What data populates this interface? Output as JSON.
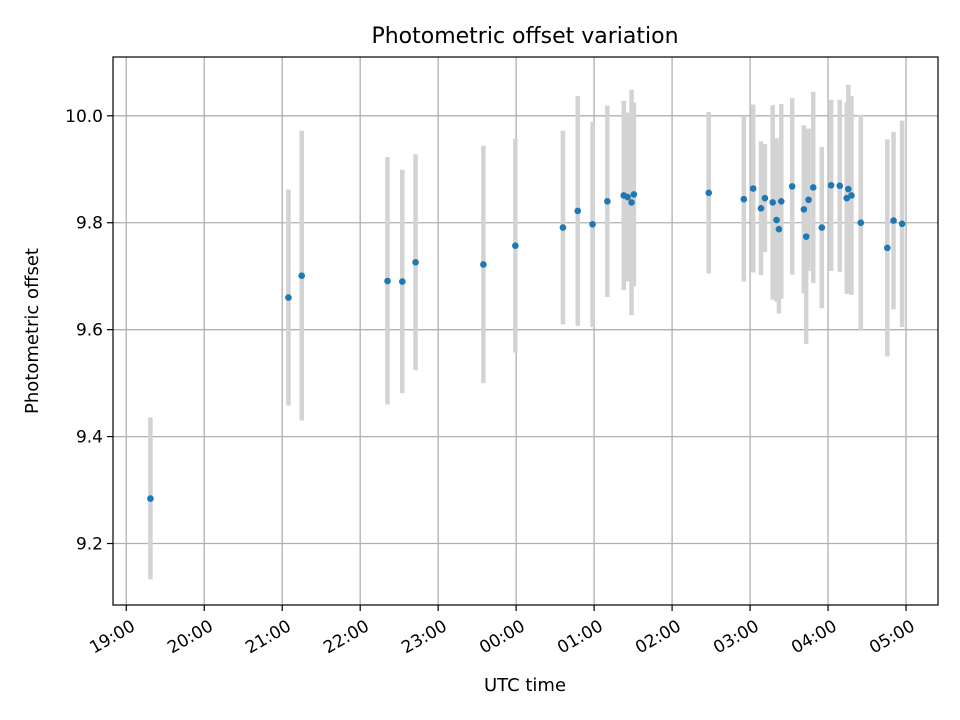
{
  "chart_data": {
    "type": "scatter",
    "title": "Photometric offset variation",
    "xlabel": "UTC time",
    "ylabel": "Photometric offset",
    "grid": true,
    "x_unit": "hours since 19:00 UTC",
    "xlim": [
      -0.17,
      10.41
    ],
    "ylim": [
      9.085,
      10.11
    ],
    "x_ticks": [
      {
        "value": 0,
        "label": "19:00"
      },
      {
        "value": 1,
        "label": "20:00"
      },
      {
        "value": 2,
        "label": "21:00"
      },
      {
        "value": 3,
        "label": "22:00"
      },
      {
        "value": 4,
        "label": "23:00"
      },
      {
        "value": 5,
        "label": "00:00"
      },
      {
        "value": 6,
        "label": "01:00"
      },
      {
        "value": 7,
        "label": "02:00"
      },
      {
        "value": 8,
        "label": "03:00"
      },
      {
        "value": 9,
        "label": "04:00"
      },
      {
        "value": 10,
        "label": "05:00"
      }
    ],
    "y_ticks": [
      {
        "value": 9.2,
        "label": "9.2"
      },
      {
        "value": 9.4,
        "label": "9.4"
      },
      {
        "value": 9.6,
        "label": "9.6"
      },
      {
        "value": 9.8,
        "label": "9.8"
      },
      {
        "value": 10.0,
        "label": "10.0"
      }
    ],
    "colors": {
      "point": "#1f77b4",
      "errorbar": "#d3d3d3",
      "grid": "#b0b0b0",
      "axis": "#000000"
    },
    "series": [
      {
        "name": "Photometric offset",
        "points": [
          {
            "x": 0.31,
            "y": 9.284,
            "lo": 9.133,
            "hi": 9.436
          },
          {
            "x": 2.08,
            "y": 9.66,
            "lo": 9.458,
            "hi": 9.862
          },
          {
            "x": 2.25,
            "y": 9.701,
            "lo": 9.43,
            "hi": 9.972
          },
          {
            "x": 3.35,
            "y": 9.691,
            "lo": 9.46,
            "hi": 9.923
          },
          {
            "x": 3.54,
            "y": 9.69,
            "lo": 9.481,
            "hi": 9.899
          },
          {
            "x": 3.71,
            "y": 9.726,
            "lo": 9.524,
            "hi": 9.928
          },
          {
            "x": 4.58,
            "y": 9.722,
            "lo": 9.5,
            "hi": 9.944
          },
          {
            "x": 4.99,
            "y": 9.757,
            "lo": 9.557,
            "hi": 9.957
          },
          {
            "x": 5.6,
            "y": 9.791,
            "lo": 9.61,
            "hi": 9.972
          },
          {
            "x": 5.79,
            "y": 9.822,
            "lo": 9.607,
            "hi": 10.037
          },
          {
            "x": 5.98,
            "y": 9.797,
            "lo": 9.605,
            "hi": 9.989
          },
          {
            "x": 6.17,
            "y": 9.84,
            "lo": 9.661,
            "hi": 10.019
          },
          {
            "x": 6.38,
            "y": 9.851,
            "lo": 9.674,
            "hi": 10.028
          },
          {
            "x": 6.43,
            "y": 9.848,
            "lo": 9.69,
            "hi": 10.006
          },
          {
            "x": 6.48,
            "y": 9.838,
            "lo": 9.627,
            "hi": 10.049
          },
          {
            "x": 6.51,
            "y": 9.853,
            "lo": 9.681,
            "hi": 10.025
          },
          {
            "x": 7.47,
            "y": 9.856,
            "lo": 9.705,
            "hi": 10.007
          },
          {
            "x": 7.92,
            "y": 9.844,
            "lo": 9.69,
            "hi": 9.998
          },
          {
            "x": 8.04,
            "y": 9.864,
            "lo": 9.707,
            "hi": 10.021
          },
          {
            "x": 8.14,
            "y": 9.827,
            "lo": 9.702,
            "hi": 9.952
          },
          {
            "x": 8.19,
            "y": 9.846,
            "lo": 9.745,
            "hi": 9.947
          },
          {
            "x": 8.29,
            "y": 9.838,
            "lo": 9.656,
            "hi": 10.02
          },
          {
            "x": 8.34,
            "y": 9.805,
            "lo": 9.652,
            "hi": 9.958
          },
          {
            "x": 8.37,
            "y": 9.788,
            "lo": 9.63,
            "hi": 9.946
          },
          {
            "x": 8.4,
            "y": 9.84,
            "lo": 9.658,
            "hi": 10.022
          },
          {
            "x": 8.54,
            "y": 9.868,
            "lo": 9.703,
            "hi": 10.033
          },
          {
            "x": 8.69,
            "y": 9.825,
            "lo": 9.668,
            "hi": 9.982
          },
          {
            "x": 8.72,
            "y": 9.774,
            "lo": 9.573,
            "hi": 9.975
          },
          {
            "x": 8.75,
            "y": 9.843,
            "lo": 9.71,
            "hi": 9.976
          },
          {
            "x": 8.81,
            "y": 9.866,
            "lo": 9.687,
            "hi": 10.045
          },
          {
            "x": 8.92,
            "y": 9.791,
            "lo": 9.64,
            "hi": 9.942
          },
          {
            "x": 9.04,
            "y": 9.87,
            "lo": 9.71,
            "hi": 10.03
          },
          {
            "x": 9.15,
            "y": 9.869,
            "lo": 9.708,
            "hi": 10.03
          },
          {
            "x": 9.24,
            "y": 9.846,
            "lo": 9.667,
            "hi": 10.025
          },
          {
            "x": 9.26,
            "y": 9.863,
            "lo": 9.668,
            "hi": 10.058
          },
          {
            "x": 9.3,
            "y": 9.851,
            "lo": 9.665,
            "hi": 10.037
          },
          {
            "x": 9.42,
            "y": 9.8,
            "lo": 9.598,
            "hi": 10.002
          },
          {
            "x": 9.76,
            "y": 9.753,
            "lo": 9.55,
            "hi": 9.956
          },
          {
            "x": 9.84,
            "y": 9.804,
            "lo": 9.638,
            "hi": 9.97
          },
          {
            "x": 9.95,
            "y": 9.798,
            "lo": 9.605,
            "hi": 9.991
          }
        ]
      }
    ]
  }
}
